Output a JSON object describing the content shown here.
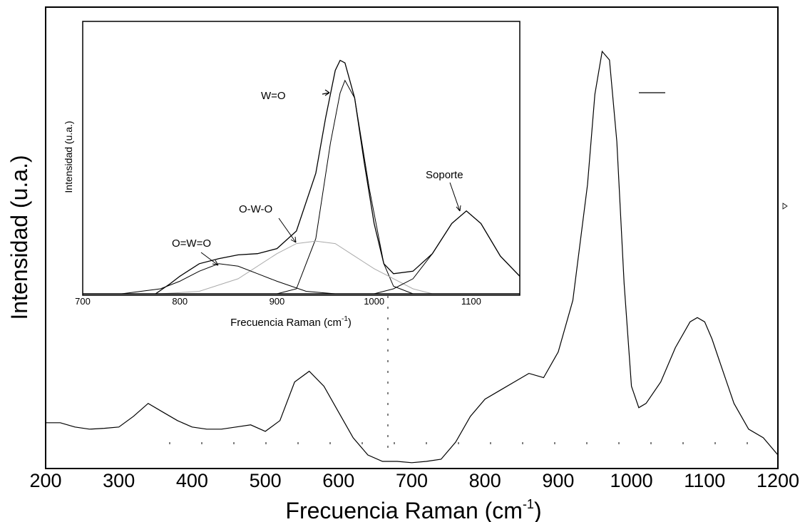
{
  "chart_data": [
    {
      "type": "line",
      "panel": "main",
      "xlabel": "Frecuencia Raman (cm",
      "xlabel_sup": "-1",
      "xlabel_end": ")",
      "ylabel": "Intensidad (u.a.)",
      "xlim": [
        200,
        1200
      ],
      "ylim": [
        0,
        1
      ],
      "x_ticks": [
        "200",
        "300",
        "400",
        "500",
        "600",
        "700",
        "800",
        "900",
        "1000",
        "1100",
        "1200"
      ],
      "y_ticks": [],
      "grid": false,
      "series": [
        {
          "x": [
            200,
            220,
            240,
            260,
            280,
            300,
            320,
            340,
            360,
            380,
            400,
            420,
            440,
            460,
            480,
            500,
            520,
            540,
            560,
            580,
            600,
            620,
            640,
            660,
            680,
            700,
            720,
            740,
            760,
            780,
            800,
            820,
            840,
            860,
            880,
            900,
            920,
            940,
            950,
            960,
            970,
            980,
            990,
            1000,
            1010,
            1020,
            1040,
            1060,
            1080,
            1090,
            1100,
            1110,
            1120,
            1140,
            1160,
            1180,
            1200
          ],
          "y": [
            0.095,
            0.095,
            0.085,
            0.08,
            0.082,
            0.085,
            0.11,
            0.14,
            0.12,
            0.1,
            0.085,
            0.08,
            0.08,
            0.085,
            0.09,
            0.075,
            0.1,
            0.19,
            0.215,
            0.18,
            0.12,
            0.06,
            0.02,
            0.005,
            0.005,
            0.002,
            0.005,
            0.01,
            0.05,
            0.11,
            0.15,
            0.17,
            0.19,
            0.21,
            0.2,
            0.26,
            0.38,
            0.65,
            0.86,
            0.96,
            0.94,
            0.75,
            0.42,
            0.18,
            0.13,
            0.14,
            0.19,
            0.27,
            0.33,
            0.34,
            0.33,
            0.29,
            0.24,
            0.14,
            0.08,
            0.06,
            0.02
          ]
        }
      ]
    },
    {
      "type": "line",
      "panel": "inset",
      "xlabel": "Frecuencia Raman (cm",
      "xlabel_sup": "-1",
      "xlabel_end": ")",
      "ylabel": "Intensidad (u.a.)",
      "xlim": [
        700,
        1150
      ],
      "ylim": [
        0,
        1
      ],
      "x_ticks": [
        "700",
        "800",
        "900",
        "1000",
        "1100"
      ],
      "grid": false,
      "annotations": [
        {
          "text": "W=O",
          "x": 900,
          "y": 0.8
        },
        {
          "text": "O-W-O",
          "x": 840,
          "y": 0.37
        },
        {
          "text": "O=W=O",
          "x": 730,
          "y": 0.22
        },
        {
          "text": "Soporte",
          "x": 1078,
          "y": 0.5
        }
      ],
      "series": [
        {
          "role": "spectrum",
          "x": [
            775,
            790,
            800,
            820,
            840,
            860,
            880,
            900,
            920,
            940,
            950,
            960,
            965,
            970,
            980,
            990,
            1000,
            1010,
            1020,
            1040,
            1060,
            1080,
            1095,
            1110,
            1130,
            1150
          ],
          "y": [
            0.0,
            0.04,
            0.07,
            0.12,
            0.14,
            0.155,
            0.16,
            0.18,
            0.25,
            0.48,
            0.7,
            0.89,
            0.93,
            0.92,
            0.78,
            0.52,
            0.28,
            0.12,
            0.08,
            0.09,
            0.16,
            0.28,
            0.33,
            0.28,
            0.15,
            0.07
          ]
        },
        {
          "role": "component",
          "name": "W=O",
          "x": [
            900,
            920,
            940,
            955,
            965,
            970,
            980,
            995,
            1010,
            1020,
            1040
          ],
          "y": [
            0.0,
            0.02,
            0.22,
            0.6,
            0.8,
            0.85,
            0.78,
            0.42,
            0.12,
            0.03,
            0.0
          ]
        },
        {
          "role": "component",
          "name": "O-W-O",
          "x": [
            780,
            820,
            860,
            900,
            920,
            940,
            960,
            980,
            1000,
            1040,
            1060
          ],
          "y": [
            0.0,
            0.01,
            0.06,
            0.16,
            0.2,
            0.21,
            0.2,
            0.15,
            0.1,
            0.02,
            0.0
          ]
        },
        {
          "role": "component",
          "name": "O=W=O",
          "x": [
            740,
            780,
            800,
            820,
            840,
            860,
            880,
            900,
            930,
            960
          ],
          "y": [
            0.0,
            0.02,
            0.05,
            0.09,
            0.12,
            0.11,
            0.08,
            0.05,
            0.01,
            0.0
          ]
        },
        {
          "role": "component",
          "name": "Soporte",
          "x": [
            1000,
            1020,
            1040,
            1060,
            1080,
            1095,
            1110,
            1130,
            1150
          ],
          "y": [
            0.0,
            0.02,
            0.06,
            0.16,
            0.28,
            0.33,
            0.28,
            0.15,
            0.07
          ]
        }
      ]
    }
  ]
}
